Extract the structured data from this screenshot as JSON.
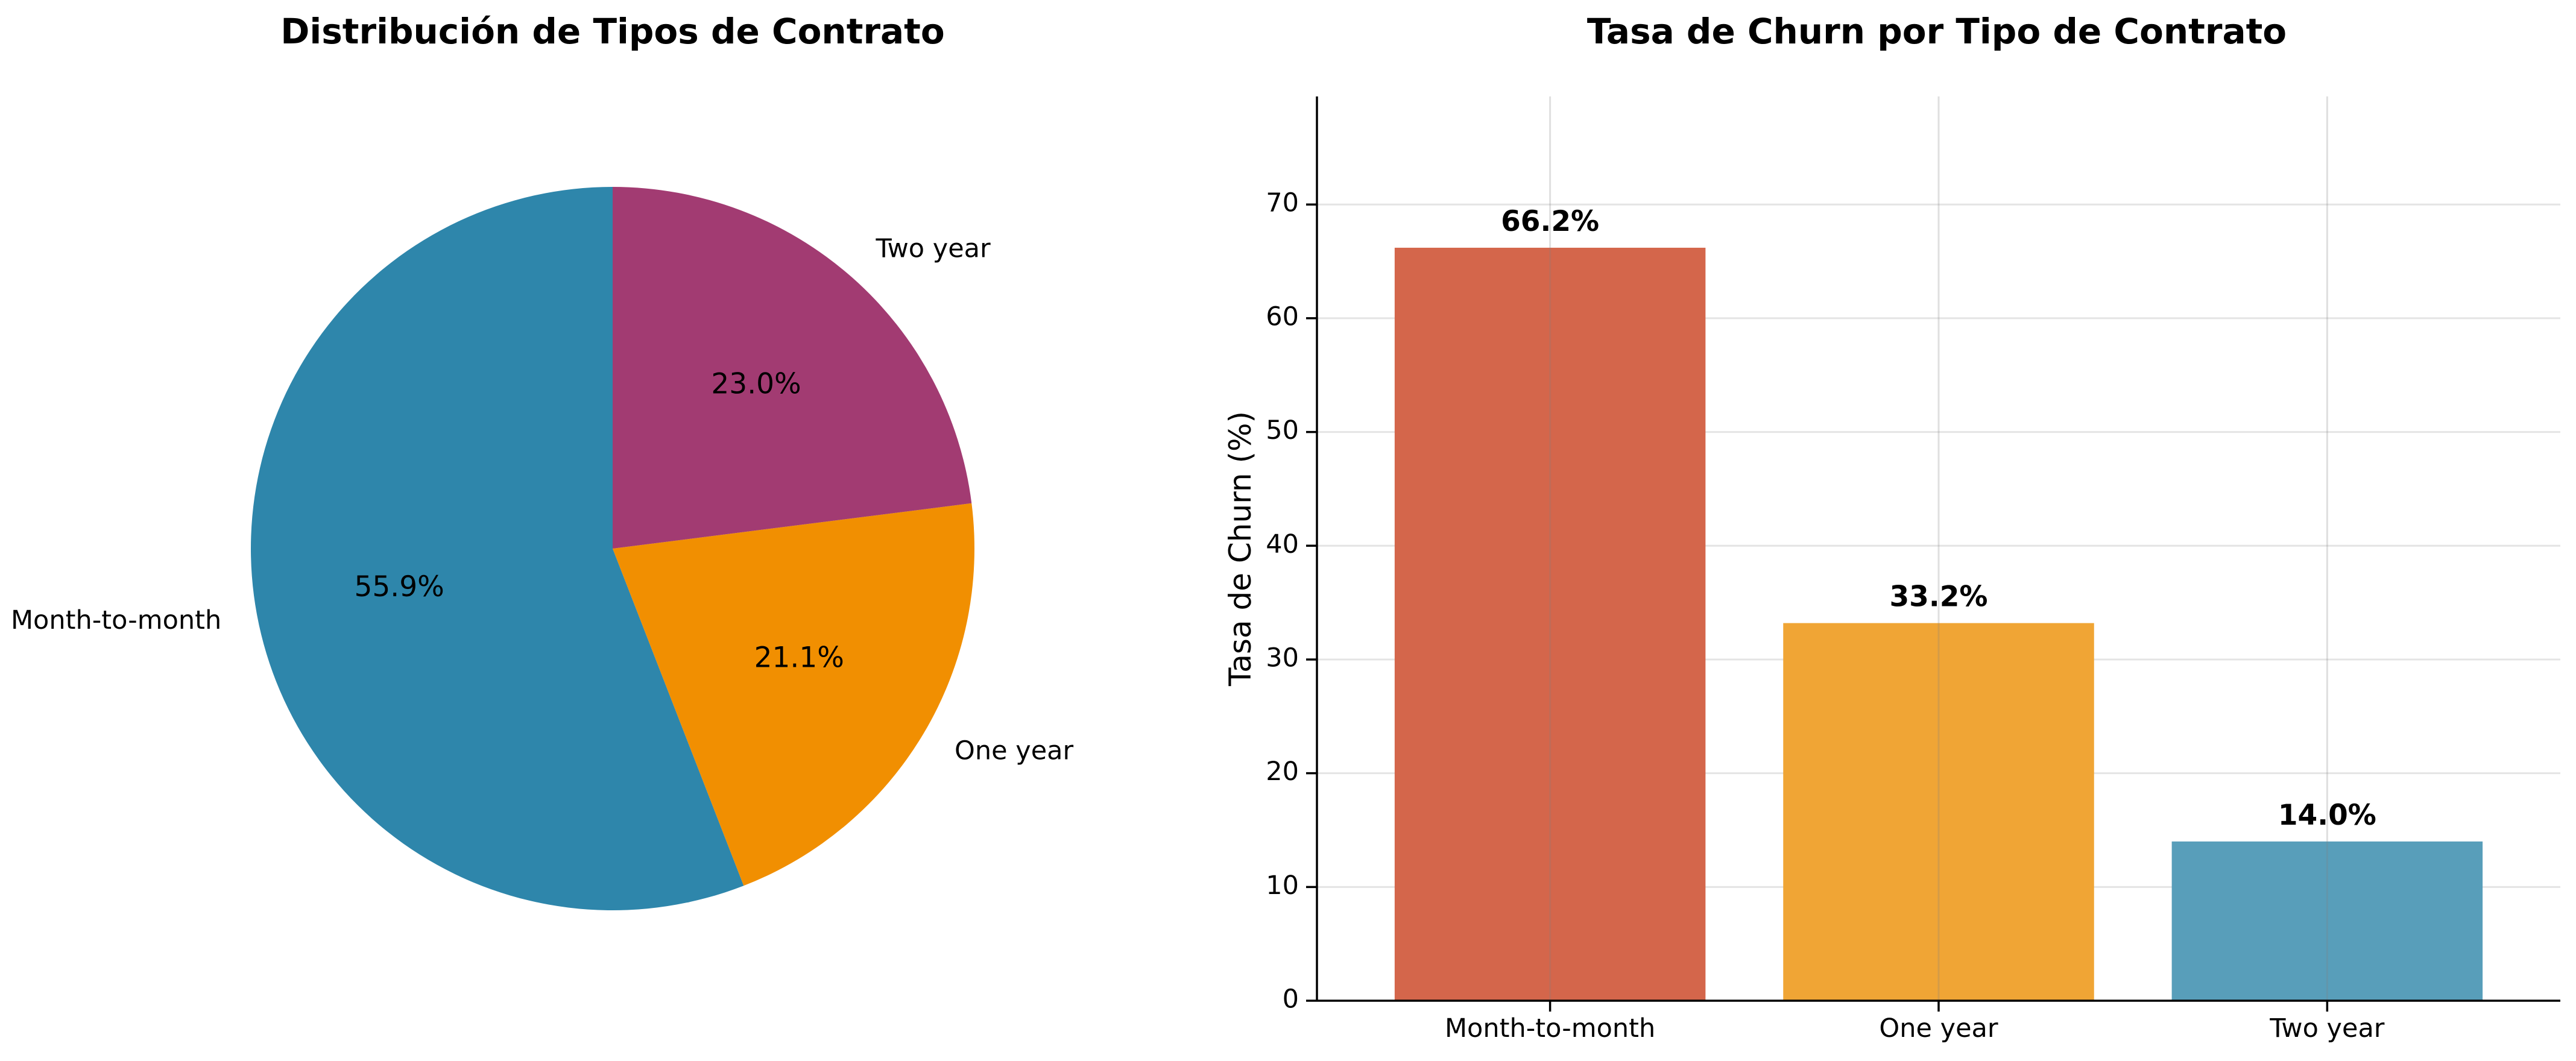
{
  "chart_data": [
    {
      "type": "pie",
      "title": "Distribución de Tipos de Contrato",
      "labels": [
        "Month-to-month",
        "One year",
        "Two year"
      ],
      "values": [
        55.9,
        21.1,
        23.0
      ],
      "pct_labels": [
        "55.9%",
        "21.1%",
        "23.0%"
      ],
      "colors": [
        "#2e86ab",
        "#f18f01",
        "#a23b72"
      ],
      "start_angle_deg": 90,
      "direction": "counterclockwise"
    },
    {
      "type": "bar",
      "title": "Tasa de Churn por Tipo de Contrato",
      "categories": [
        "Month-to-month",
        "One year",
        "Two year"
      ],
      "values": [
        66.2,
        33.2,
        14.0
      ],
      "value_labels": [
        "66.2%",
        "33.2%",
        "14.0%"
      ],
      "colors": [
        "#d4664b",
        "#f0a535",
        "#589eba"
      ],
      "xlabel": "",
      "ylabel": "Tasa de Churn (%)",
      "ylim": [
        0,
        79.5
      ],
      "yticks": [
        "0",
        "10",
        "20",
        "30",
        "40",
        "50",
        "60",
        "70"
      ],
      "grid": true
    }
  ]
}
